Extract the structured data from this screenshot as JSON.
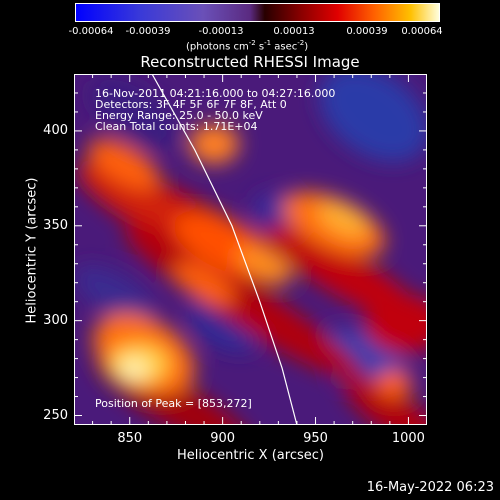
{
  "chart_data": {
    "type": "heatmap",
    "title": "Reconstructed RHESSI Image",
    "xlabel": "Heliocentric X (arcsec)",
    "ylabel": "Heliocentric Y (arcsec)",
    "xlim": [
      820,
      1010
    ],
    "ylim": [
      245,
      430
    ],
    "x_ticks": [
      "850",
      "900",
      "950",
      "1000"
    ],
    "y_ticks": [
      "250",
      "300",
      "350",
      "400"
    ],
    "colorbar": {
      "ticks": [
        "-0.00064",
        "-0.00039",
        "-0.00013",
        "0.00013",
        "0.00039",
        "0.00064"
      ],
      "units_label": "(photons cm",
      "units_sup1": "-2",
      "units_mid": " s",
      "units_sup2": "-1",
      "units_end": " asec",
      "units_sup3": "-2",
      "units_close": ")",
      "range": [
        -0.00064,
        0.00064
      ]
    },
    "annotations": [
      "16-Nov-2011 04:21:16.000 to 04:27:16.000",
      "Detectors: 3F 4F 5F 6F 7F 8F, Att 0",
      "Energy Range: 25.0 - 50.0 keV",
      "Clean     Total counts: 1.71E+04"
    ],
    "peak_label": "Position of Peak = [853,272]",
    "limb_curve": [
      [
        862,
        430
      ],
      [
        885,
        390
      ],
      [
        905,
        350
      ],
      [
        920,
        310
      ],
      [
        932,
        275
      ],
      [
        940,
        245
      ]
    ]
  },
  "footer": {
    "timestamp": "16-May-2022 06:23"
  },
  "colors": {
    "background": "#000000",
    "limb": "#ffffff"
  }
}
